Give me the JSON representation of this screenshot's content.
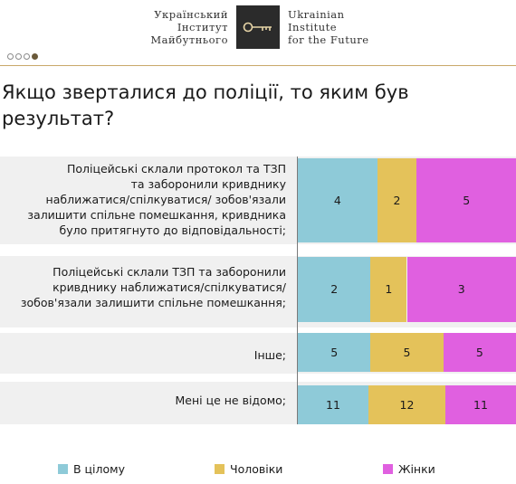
{
  "header": {
    "logo_left_lines": [
      "Український",
      "Інститут",
      "Майбутнього"
    ],
    "logo_right_lines": [
      "Ukrainian",
      "Institute",
      "for the Future"
    ],
    "logo_mark_icon": "key-icon",
    "pagination": {
      "total": 4,
      "active_index": 3
    }
  },
  "title": "Якщо зверталися до поліції, то яким був результат?",
  "colors": {
    "overall": "#8ecad8",
    "men": "#e4c25a",
    "women": "#e060e0",
    "row_band": "#f0f0f0",
    "accent_rule": "#c9a86a"
  },
  "chart_data": {
    "type": "bar",
    "orientation": "horizontal",
    "stacked": true,
    "normalized": true,
    "title": "Якщо зверталися до поліції, то яким був результат?",
    "categories": [
      "Поліцейські склали протокол та ТЗП та заборонили кривднику наближатися/спілкуватися/ зобов'язали залишити спільне помешкання, кривдника було притягнуто до відповідальності;",
      "Поліцейські склали ТЗП та заборонили кривднику наближатися/спілкуватися/ зобов'язали залишити спільне помешкання;",
      "Інше;",
      "Мені це не відомо;"
    ],
    "category_lines": [
      [
        "Поліцейські склали протокол та ТЗП",
        "та заборонили  кривднику",
        "наближатися/спілкуватися/ зобов'язали",
        "залишити спільне помешкання, кривдника",
        "було притягнуто до відповідальності;"
      ],
      [
        "Поліцейські склали ТЗП та заборонили",
        "кривднику наближатися/спілкуватися/",
        "зобов'язали залишити спільне помешкання;"
      ],
      [
        "Інше;"
      ],
      [
        "Мені це не відомо;"
      ]
    ],
    "series": [
      {
        "name": "В цілому",
        "values": [
          4,
          2,
          5,
          11
        ]
      },
      {
        "name": "Чоловіки",
        "values": [
          2,
          1,
          5,
          12
        ]
      },
      {
        "name": "Жінки",
        "values": [
          5,
          3,
          5,
          11
        ]
      }
    ],
    "legend_position": "bottom",
    "grid": false
  }
}
